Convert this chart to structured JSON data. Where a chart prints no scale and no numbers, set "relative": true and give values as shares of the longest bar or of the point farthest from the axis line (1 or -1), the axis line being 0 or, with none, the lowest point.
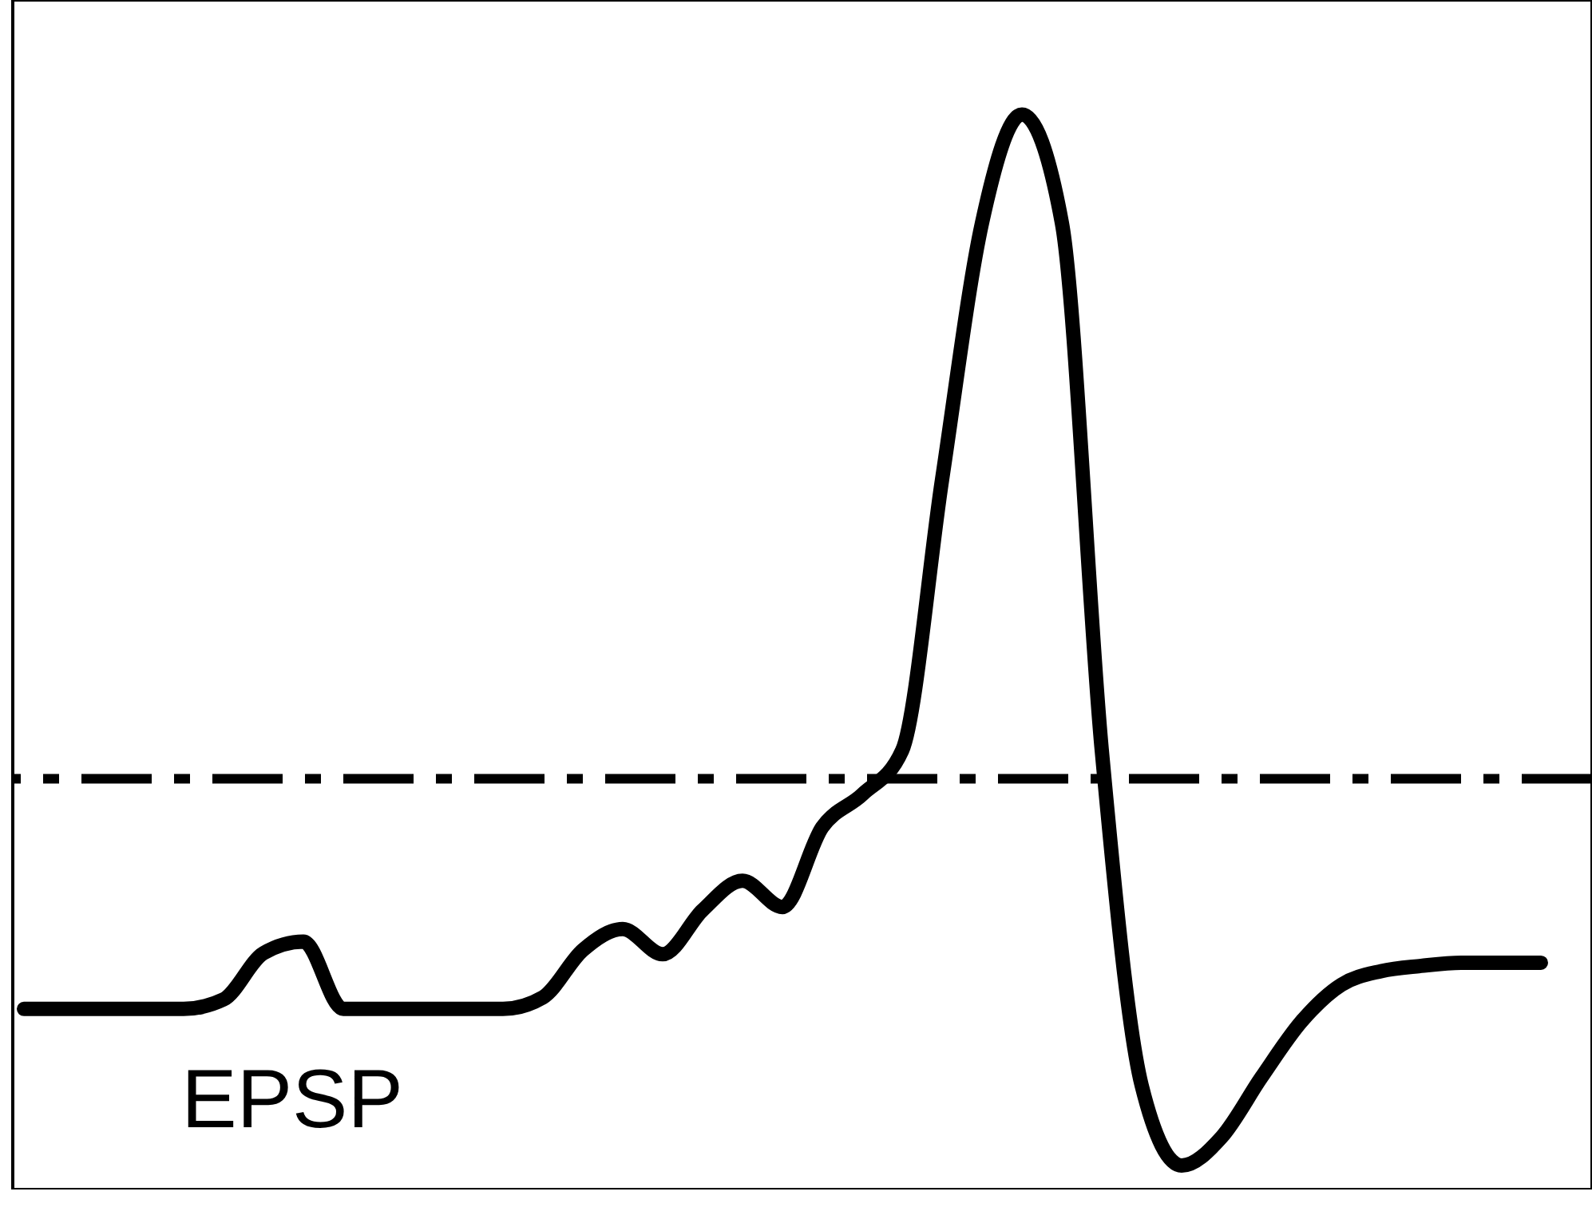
{
  "chart_data": {
    "type": "line",
    "relative": true,
    "categories": [
      null,
      null,
      null,
      null,
      null,
      null,
      null,
      null,
      null,
      null,
      null,
      null,
      null,
      null,
      null,
      null,
      null,
      null,
      null,
      null,
      null,
      null,
      null,
      null,
      null,
      null,
      null,
      null,
      null,
      null,
      null,
      null,
      null,
      null,
      null,
      null,
      null,
      null,
      null
    ],
    "series": [
      {
        "color": "#000000",
        "values": [
          0.149,
          0.149,
          0.149,
          0.149,
          0.149,
          0.158,
          0.202,
          0.213,
          0.149,
          0.149,
          0.149,
          0.149,
          0.149,
          0.16,
          0.205,
          0.225,
          0.201,
          0.243,
          0.271,
          0.246,
          0.322,
          0.353,
          0.395,
          0.653,
          0.897,
          1,
          0.897,
          0.395,
          0.076,
          0,
          0.027,
          0.084,
          0.137,
          0.172,
          0.185,
          0.19,
          0.193,
          0.193,
          0.193
        ]
      }
    ],
    "ref_lines": [
      {
        "axis": "y",
        "value": 0.368,
        "color": "#000000",
        "line_style": "dashed"
      }
    ],
    "annotations": [
      "EPSP"
    ],
    "line_style": "solid"
  }
}
